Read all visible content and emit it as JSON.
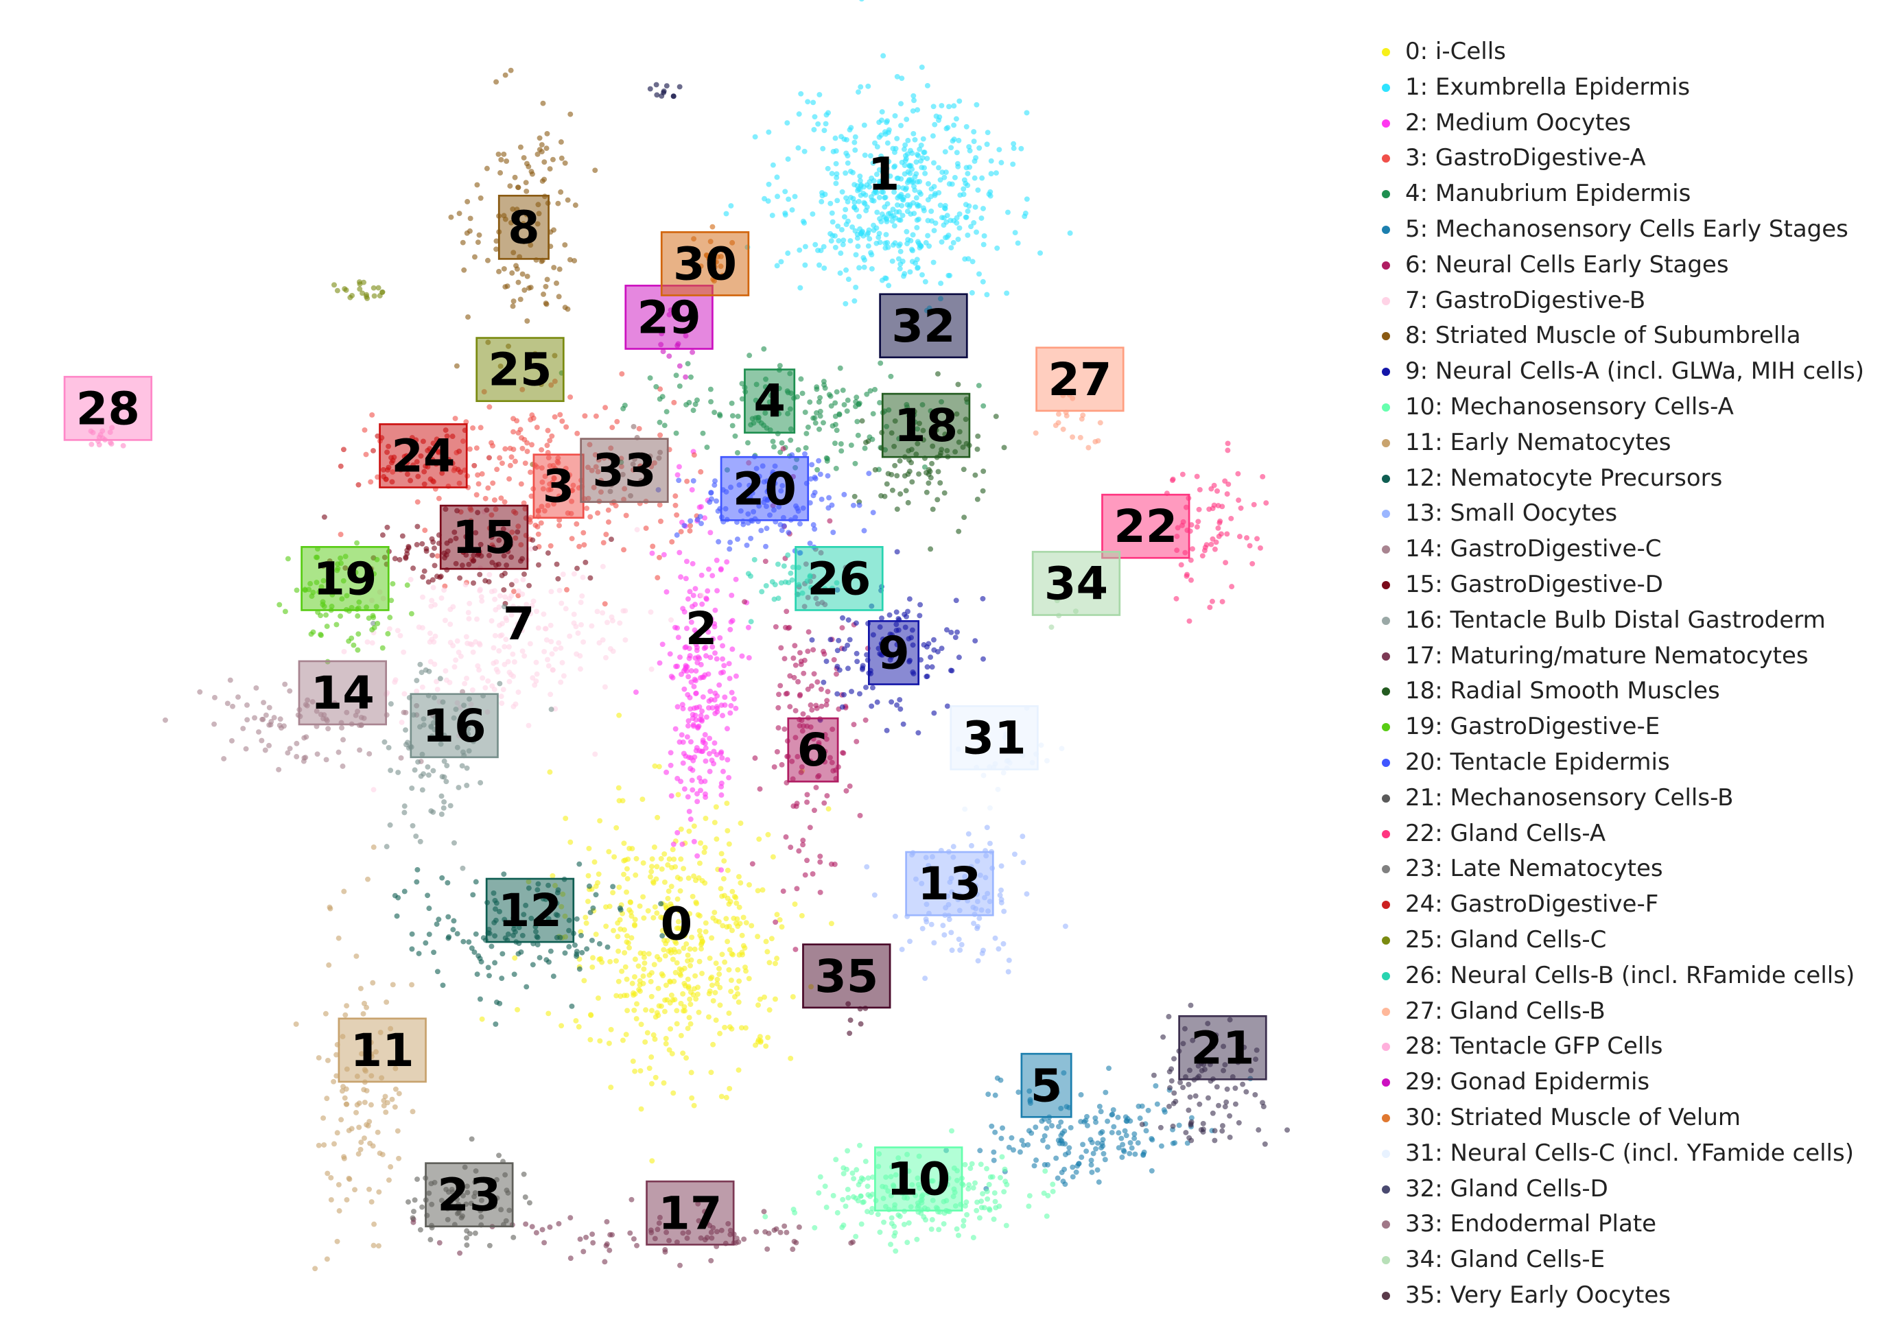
{
  "chart_data": {
    "type": "scatter",
    "title": "",
    "xlabel": "",
    "ylabel": "",
    "axes_visible": false,
    "legend_position": "right",
    "clusters": [
      {
        "id": 0,
        "label": "0",
        "name": "0: i-Cells",
        "color": "#f7f01a",
        "center": [
          545,
          775
        ],
        "spread": [
          45,
          55
        ],
        "count": 1900
      },
      {
        "id": 1,
        "label": "1",
        "name": "1: Exumbrella Epidermis",
        "color": "#2ee3ff",
        "center": [
          720,
          160
        ],
        "spread": [
          45,
          40
        ],
        "count": 2100
      },
      {
        "id": 2,
        "label": "2",
        "name": "2: Medium Oocytes",
        "color": "#ff38f0",
        "center": [
          565,
          560
        ],
        "spread": [
          14,
          60
        ],
        "count": 1000
      },
      {
        "id": 3,
        "label": "3",
        "name": "3: GastroDigestive-A",
        "color": "#f0504a",
        "center": [
          440,
          395
        ],
        "spread": [
          55,
          35
        ],
        "count": 1000
      },
      {
        "id": 4,
        "label": "4",
        "name": "4: Manubrium Epidermis",
        "color": "#1f8f50",
        "center": [
          635,
          340
        ],
        "spread": [
          55,
          22
        ],
        "count": 700
      },
      {
        "id": 5,
        "label": "5",
        "name": "5: Mechanosensory Cells Early Stages",
        "color": "#1c7fae",
        "center": [
          880,
          935
        ],
        "spread": [
          45,
          22
        ],
        "count": 650
      },
      {
        "id": 6,
        "label": "6",
        "name": "6: Neural Cells Early Stages",
        "color": "#b01d62",
        "center": [
          650,
          595
        ],
        "spread": [
          18,
          75
        ],
        "count": 650
      },
      {
        "id": 7,
        "label": "7",
        "name": "7: GastroDigestive-B",
        "color": "#ffd3e6",
        "center": [
          400,
          525
        ],
        "spread": [
          50,
          35
        ],
        "count": 900
      },
      {
        "id": 8,
        "label": "8",
        "name": "8: Striated Muscle of Subumbrella",
        "color": "#8a5a12",
        "center": [
          420,
          185
        ],
        "spread": [
          25,
          55
        ],
        "count": 500
      },
      {
        "id": 9,
        "label": "9",
        "name": "9: Neural Cells-A (incl. GLWa, MIH cells)",
        "color": "#1416a8",
        "center": [
          720,
          540
        ],
        "spread": [
          30,
          28
        ],
        "count": 450
      },
      {
        "id": 10,
        "label": "10",
        "name": "10: Mechanosensory Cells-A",
        "color": "#66ffae",
        "center": [
          740,
          985
        ],
        "spread": [
          42,
          18
        ],
        "count": 850
      },
      {
        "id": 11,
        "label": "11",
        "name": "11: Early Nematocytes",
        "color": "#c8a36e",
        "center": [
          290,
          900
        ],
        "spread": [
          18,
          65
        ],
        "count": 450
      },
      {
        "id": 12,
        "label": "12",
        "name": "12: Nematocyte Precursors",
        "color": "#0f5e52",
        "center": [
          420,
          760
        ],
        "spread": [
          50,
          25
        ],
        "count": 550
      },
      {
        "id": 13,
        "label": "13",
        "name": "13: Small Oocytes",
        "color": "#9bb6ff",
        "center": [
          775,
          745
        ],
        "spread": [
          28,
          28
        ],
        "count": 400
      },
      {
        "id": 14,
        "label": "14",
        "name": "14: GastroDigestive-C",
        "color": "#a88490",
        "center": [
          245,
          595
        ],
        "spread": [
          40,
          15
        ],
        "count": 350
      },
      {
        "id": 15,
        "label": "15",
        "name": "15: GastroDigestive-D",
        "color": "#7a0a1a",
        "center": [
          370,
          455
        ],
        "spread": [
          45,
          15
        ],
        "count": 450
      },
      {
        "id": 16,
        "label": "16",
        "name": "16: Tentacle Bulb Distal Gastroderm",
        "color": "#78908c",
        "center": [
          350,
          620
        ],
        "spread": [
          22,
          40
        ],
        "count": 350
      },
      {
        "id": 17,
        "label": "17",
        "name": "17: Maturing/mature Nematocytes",
        "color": "#7c3a55",
        "center": [
          540,
          1015
        ],
        "spread": [
          75,
          10
        ],
        "count": 350
      },
      {
        "id": 18,
        "label": "18",
        "name": "18: Radial Smooth Muscles",
        "color": "#235b20",
        "center": [
          745,
          375
        ],
        "spread": [
          25,
          28
        ],
        "count": 350
      },
      {
        "id": 19,
        "label": "19",
        "name": "19: GastroDigestive-E",
        "color": "#58cc14",
        "center": [
          275,
          495
        ],
        "spread": [
          22,
          20
        ],
        "count": 300
      },
      {
        "id": 20,
        "label": "20",
        "name": "20: Tentacle Epidermis",
        "color": "#4056ff",
        "center": [
          620,
          415
        ],
        "spread": [
          35,
          18
        ],
        "count": 500
      },
      {
        "id": 21,
        "label": "21",
        "name": "21: Mechanosensory Cells-B",
        "color": "#3b2e4e",
        "center": [
          975,
          895
        ],
        "spread": [
          25,
          25
        ],
        "count": 350
      },
      {
        "id": 22,
        "label": "22",
        "name": "22: Gland Cells-A",
        "color": "#ff3580",
        "center": [
          975,
          440
        ],
        "spread": [
          20,
          30
        ],
        "count": 300
      },
      {
        "id": 23,
        "label": "23",
        "name": "23: Late Nematocytes",
        "color": "#5f5f5a",
        "center": [
          375,
          990
        ],
        "spread": [
          25,
          18
        ],
        "count": 300
      },
      {
        "id": 24,
        "label": "24",
        "name": "24: GastroDigestive-F",
        "color": "#cc1010",
        "center": [
          335,
          380
        ],
        "spread": [
          25,
          12
        ],
        "count": 250
      },
      {
        "id": 25,
        "label": "25",
        "name": "25: Gland Cells-C",
        "color": "#7a8a10",
        "center": [
          290,
          240
        ],
        "spread": [
          10,
          5
        ],
        "count": 80
      },
      {
        "id": 26,
        "label": "26",
        "name": "26: Neural Cells-B (incl. RFamide cells)",
        "color": "#28d4b0",
        "center": [
          630,
          475
        ],
        "spread": [
          20,
          12
        ],
        "count": 120
      },
      {
        "id": 27,
        "label": "27",
        "name": "27: Gland Cells-B",
        "color": "#ff9e80",
        "center": [
          870,
          350
        ],
        "spread": [
          18,
          12
        ],
        "count": 70
      },
      {
        "id": 28,
        "label": "28",
        "name": "28: Tentacle GFP Cells",
        "color": "#ff88c8",
        "center": [
          80,
          360
        ],
        "spread": [
          8,
          5
        ],
        "count": 60
      },
      {
        "id": 29,
        "label": "29",
        "name": "29: Gonad Epidermis",
        "color": "#cc10c0",
        "center": [
          545,
          280
        ],
        "spread": [
          10,
          14
        ],
        "count": 60
      },
      {
        "id": 30,
        "label": "30",
        "name": "30: Striated Muscle of Velum",
        "color": "#d2660e",
        "center": [
          570,
          210
        ],
        "spread": [
          10,
          10
        ],
        "count": 80
      },
      {
        "id": 31,
        "label": "31",
        "name": "31: Neural Cells-C (incl. YFamide cells)",
        "color": "#e8f2ff",
        "center": [
          810,
          620
        ],
        "spread": [
          22,
          16
        ],
        "count": 100
      },
      {
        "id": 32,
        "label": "32",
        "name": "32: Gland Cells-D",
        "color": "#0a0a40",
        "center": [
          535,
          75
        ],
        "spread": [
          6,
          3
        ],
        "count": 40
      },
      {
        "id": 33,
        "label": "33",
        "name": "33: Endodermal Plate",
        "color": "#8c6a6a",
        "center": [
          505,
          380
        ],
        "spread": [
          15,
          15
        ],
        "count": 60
      },
      {
        "id": 34,
        "label": "34",
        "name": "34: Gland Cells-E",
        "color": "#a8d8a8",
        "center": [
          855,
          495
        ],
        "spread": [
          8,
          8
        ],
        "count": 15
      },
      {
        "id": 35,
        "label": "35",
        "name": "35: Very Early Oocytes",
        "color": "#4a0a2a",
        "center": [
          690,
          835
        ],
        "spread": [
          6,
          8
        ],
        "count": 25
      }
    ],
    "label_boxes": [
      {
        "id": 0,
        "text": "0",
        "at": [
          545,
          760
        ],
        "box": false
      },
      {
        "id": 1,
        "text": "1",
        "at": [
          712,
          143
        ],
        "box": false
      },
      {
        "id": 2,
        "text": "2",
        "at": [
          565,
          517
        ],
        "box": false
      },
      {
        "id": 3,
        "text": "3",
        "at": [
          450,
          400
        ],
        "box": true
      },
      {
        "id": 4,
        "text": "4",
        "at": [
          620,
          330
        ],
        "box": true
      },
      {
        "id": 5,
        "text": "5",
        "at": [
          843,
          893
        ],
        "box": true
      },
      {
        "id": 6,
        "text": "6",
        "at": [
          655,
          617
        ],
        "box": true
      },
      {
        "id": 7,
        "text": "7",
        "at": [
          418,
          513
        ],
        "box": false
      },
      {
        "id": 8,
        "text": "8",
        "at": [
          422,
          187
        ],
        "box": true
      },
      {
        "id": 9,
        "text": "9",
        "at": [
          720,
          537
        ],
        "box": true
      },
      {
        "id": 10,
        "text": "10",
        "at": [
          740,
          970
        ],
        "box": true
      },
      {
        "id": 11,
        "text": "11",
        "at": [
          308,
          864
        ],
        "box": true
      },
      {
        "id": 12,
        "text": "12",
        "at": [
          427,
          749
        ],
        "box": true
      },
      {
        "id": 13,
        "text": "13",
        "at": [
          765,
          727
        ],
        "box": true
      },
      {
        "id": 14,
        "text": "14",
        "at": [
          276,
          570
        ],
        "box": true
      },
      {
        "id": 15,
        "text": "15",
        "at": [
          390,
          442
        ],
        "box": true
      },
      {
        "id": 16,
        "text": "16",
        "at": [
          366,
          597
        ],
        "box": true
      },
      {
        "id": 17,
        "text": "17",
        "at": [
          556,
          998
        ],
        "box": true
      },
      {
        "id": 18,
        "text": "18",
        "at": [
          746,
          350
        ],
        "box": true
      },
      {
        "id": 19,
        "text": "19",
        "at": [
          278,
          476
        ],
        "box": true
      },
      {
        "id": 20,
        "text": "20",
        "at": [
          616,
          402
        ],
        "box": true
      },
      {
        "id": 21,
        "text": "21",
        "at": [
          985,
          862
        ],
        "box": true
      },
      {
        "id": 22,
        "text": "22",
        "at": [
          923,
          433
        ],
        "box": true
      },
      {
        "id": 23,
        "text": "23",
        "at": [
          378,
          983
        ],
        "box": true
      },
      {
        "id": 24,
        "text": "24",
        "at": [
          341,
          375
        ],
        "box": true
      },
      {
        "id": 25,
        "text": "25",
        "at": [
          419,
          304
        ],
        "box": true
      },
      {
        "id": 26,
        "text": "26",
        "at": [
          676,
          476
        ],
        "box": true
      },
      {
        "id": 27,
        "text": "27",
        "at": [
          870,
          312
        ],
        "box": true
      },
      {
        "id": 28,
        "text": "28",
        "at": [
          87,
          336
        ],
        "box": true
      },
      {
        "id": 29,
        "text": "29",
        "at": [
          539,
          261
        ],
        "box": true
      },
      {
        "id": 30,
        "text": "30",
        "at": [
          568,
          217
        ],
        "box": true
      },
      {
        "id": 31,
        "text": "31",
        "at": [
          801,
          607
        ],
        "box": true
      },
      {
        "id": 32,
        "text": "32",
        "at": [
          744,
          268
        ],
        "box": true
      },
      {
        "id": 33,
        "text": "33",
        "at": [
          503,
          387
        ],
        "box": true
      },
      {
        "id": 34,
        "text": "34",
        "at": [
          867,
          480
        ],
        "box": true
      },
      {
        "id": 35,
        "text": "35",
        "at": [
          682,
          803
        ],
        "box": true
      }
    ]
  },
  "legend": {
    "items": [
      {
        "label": "0: i-Cells",
        "color": "#f7f01a"
      },
      {
        "label": "1: Exumbrella Epidermis",
        "color": "#2ee3ff"
      },
      {
        "label": "2: Medium Oocytes",
        "color": "#ff38f0"
      },
      {
        "label": "3: GastroDigestive-A",
        "color": "#f0504a"
      },
      {
        "label": "4: Manubrium Epidermis",
        "color": "#1f8f50"
      },
      {
        "label": "5: Mechanosensory Cells Early Stages",
        "color": "#1c7fae"
      },
      {
        "label": "6: Neural Cells Early Stages",
        "color": "#b01d62"
      },
      {
        "label": "7: GastroDigestive-B",
        "color": "#ffd3e6"
      },
      {
        "label": "8: Striated Muscle of Subumbrella",
        "color": "#8a5a12"
      },
      {
        "label": "9: Neural Cells-A (incl. GLWa, MIH cells)",
        "color": "#1416a8"
      },
      {
        "label": "10: Mechanosensory Cells-A",
        "color": "#66ffae"
      },
      {
        "label": "11: Early Nematocytes",
        "color": "#c8a36e"
      },
      {
        "label": "12: Nematocyte Precursors",
        "color": "#0f5e52"
      },
      {
        "label": "13: Small Oocytes",
        "color": "#9bb6ff"
      },
      {
        "label": "14: GastroDigestive-C",
        "color": "#a88490"
      },
      {
        "label": "15: GastroDigestive-D",
        "color": "#7a0a1a"
      },
      {
        "label": "16: Tentacle Bulb Distal Gastroderm",
        "color": "#9aa8a6"
      },
      {
        "label": "17: Maturing/mature Nematocytes",
        "color": "#7c3a55"
      },
      {
        "label": "18: Radial Smooth Muscles",
        "color": "#235b20"
      },
      {
        "label": "19: GastroDigestive-E",
        "color": "#58cc14"
      },
      {
        "label": "20: Tentacle Epidermis",
        "color": "#4056ff"
      },
      {
        "label": "21: Mechanosensory Cells-B",
        "color": "#5a5a5a"
      },
      {
        "label": "22: Gland Cells-A",
        "color": "#ff3580"
      },
      {
        "label": "23: Late Nematocytes",
        "color": "#808080"
      },
      {
        "label": "24: GastroDigestive-F",
        "color": "#cc2020"
      },
      {
        "label": "25: Gland Cells-C",
        "color": "#7a8a10"
      },
      {
        "label": "26: Neural Cells-B (incl. RFamide cells)",
        "color": "#28d4b0"
      },
      {
        "label": "27: Gland Cells-B",
        "color": "#ffb89a"
      },
      {
        "label": "28: Tentacle GFP Cells",
        "color": "#ffb0dc"
      },
      {
        "label": "29: Gonad Epidermis",
        "color": "#cc10c0"
      },
      {
        "label": "30: Striated Muscle of Velum",
        "color": "#e07830"
      },
      {
        "label": "31: Neural Cells-C (incl. YFamide cells)",
        "color": "#e8f2ff"
      },
      {
        "label": "32: Gland Cells-D",
        "color": "#4a4a70"
      },
      {
        "label": "33: Endodermal Plate",
        "color": "#a07888"
      },
      {
        "label": "34: Gland Cells-E",
        "color": "#b8e0b8"
      },
      {
        "label": "35: Very Early Oocytes",
        "color": "#5a3a4a"
      }
    ]
  }
}
